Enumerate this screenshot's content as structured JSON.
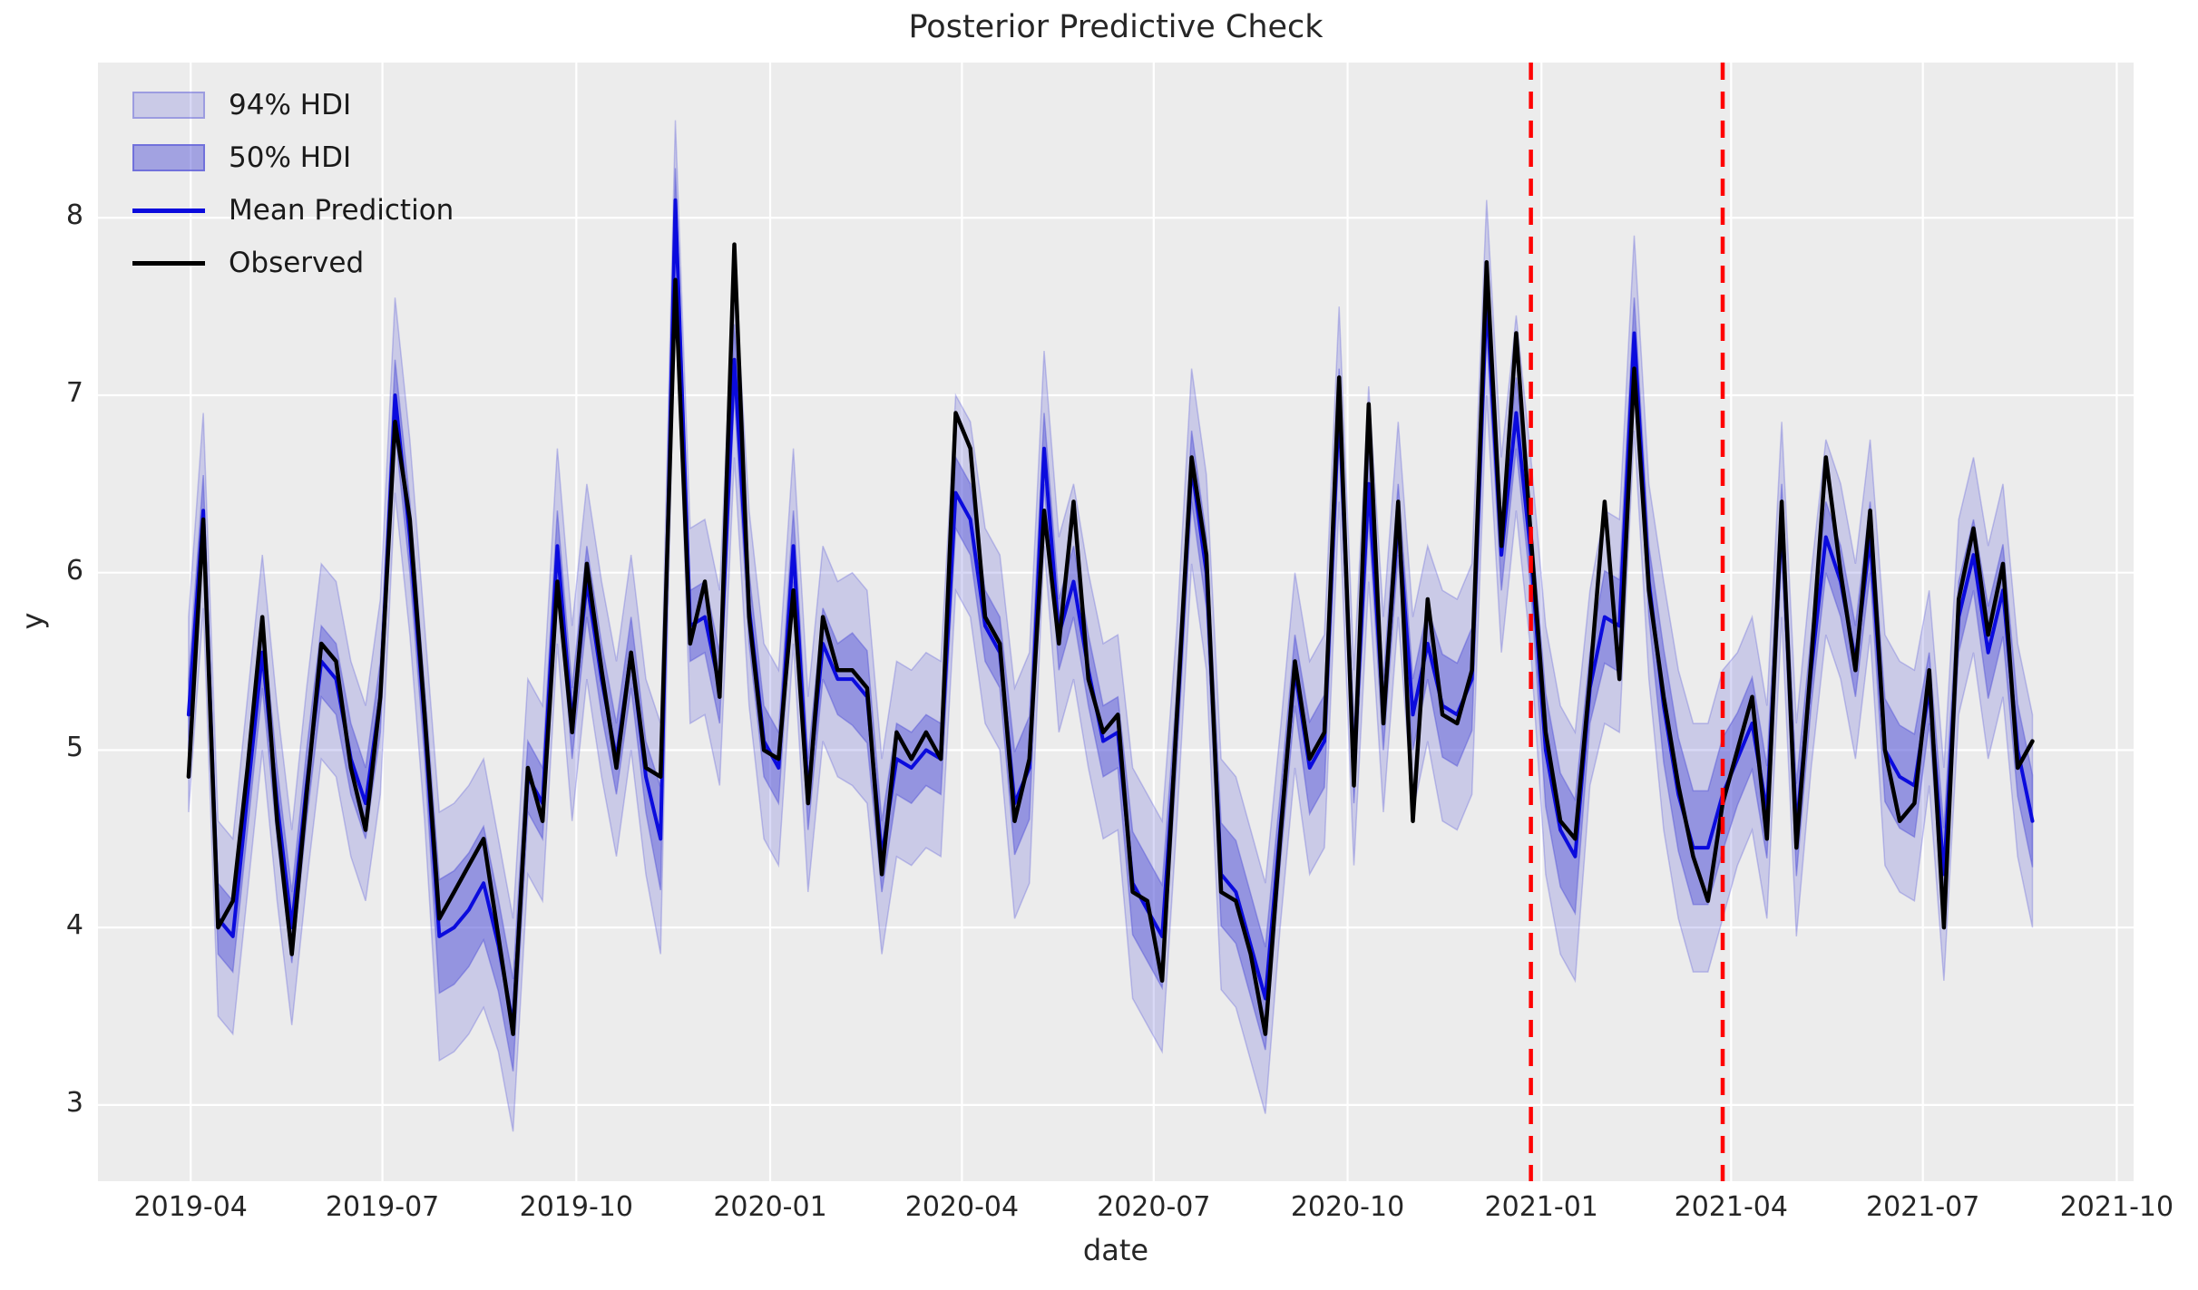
{
  "title": "Posterior Predictive Check",
  "x_axis_title": "date",
  "y_axis_title": "y",
  "legend": {
    "items": [
      {
        "label": "94% HDI",
        "swatch": "patch-light",
        "icon": "hdi94-patch-icon"
      },
      {
        "label": "50% HDI",
        "swatch": "patch-dark",
        "icon": "hdi50-patch-icon"
      },
      {
        "label": "Mean Prediction",
        "swatch": "line-blue",
        "icon": "mean-line-icon"
      },
      {
        "label": "Observed",
        "swatch": "line-black",
        "icon": "observed-line-icon"
      }
    ]
  },
  "colors": {
    "axes_background": "#ececec",
    "grid": "#ffffff",
    "hdi94_band": "rgba(82,82,214,0.22)",
    "hdi94_edge": "rgba(82,82,214,0.30)",
    "hdi50_band": "rgba(82,82,214,0.45)",
    "hdi50_edge": "rgba(82,82,214,0.45)",
    "mean_line": "#0b0bdd",
    "observed_line": "#000000",
    "cutoff_line": "#ff0000",
    "text": "#262626"
  },
  "chart_data": {
    "type": "line",
    "title": "Posterior Predictive Check",
    "xlabel": "date",
    "ylabel": "y",
    "frequency": "weekly",
    "start_date": "2019-03-31",
    "xlim": [
      "2019-02-16",
      "2021-10-09"
    ],
    "ylim": [
      2.57,
      8.875
    ],
    "y_ticks": [
      3,
      4,
      5,
      6,
      7,
      8
    ],
    "x_ticks": [
      {
        "label": "2019-04",
        "date": "2019-04-01"
      },
      {
        "label": "2019-07",
        "date": "2019-07-01"
      },
      {
        "label": "2019-10",
        "date": "2019-10-01"
      },
      {
        "label": "2020-01",
        "date": "2020-01-01"
      },
      {
        "label": "2020-04",
        "date": "2020-04-01"
      },
      {
        "label": "2020-07",
        "date": "2020-07-01"
      },
      {
        "label": "2020-10",
        "date": "2020-10-01"
      },
      {
        "label": "2021-01",
        "date": "2021-01-01"
      },
      {
        "label": "2021-04",
        "date": "2021-04-01"
      },
      {
        "label": "2021-07",
        "date": "2021-07-01"
      },
      {
        "label": "2021-10",
        "date": "2021-10-01"
      }
    ],
    "vlines": [
      {
        "date": "2020-12-27",
        "style": "dashed",
        "color": "#ff0000"
      },
      {
        "date": "2021-03-28",
        "style": "dashed",
        "color": "#ff0000"
      }
    ],
    "grid": true,
    "legend_position": "upper left",
    "series": [
      {
        "name": "Observed",
        "values": [
          4.85,
          6.3,
          4.0,
          4.15,
          4.9,
          5.75,
          4.6,
          3.85,
          4.75,
          5.6,
          5.5,
          4.9,
          4.55,
          5.3,
          6.85,
          6.3,
          5.2,
          4.05,
          4.2,
          4.35,
          4.5,
          3.95,
          3.4,
          4.9,
          4.6,
          5.95,
          5.1,
          6.05,
          5.45,
          4.9,
          5.55,
          4.9,
          4.85,
          7.65,
          5.6,
          5.95,
          5.3,
          7.85,
          5.75,
          5.0,
          4.95,
          5.9,
          4.7,
          5.75,
          5.45,
          5.45,
          5.35,
          4.3,
          5.1,
          4.95,
          5.1,
          4.95,
          6.9,
          6.7,
          5.75,
          5.6,
          4.6,
          4.95,
          6.35,
          5.6,
          6.4,
          5.4,
          5.1,
          5.2,
          4.2,
          4.15,
          3.7,
          5.2,
          6.65,
          6.1,
          4.2,
          4.15,
          3.85,
          3.4,
          4.5,
          5.5,
          4.95,
          5.1,
          7.1,
          4.8,
          6.95,
          5.15,
          6.4,
          4.6,
          5.85,
          5.2,
          5.15,
          5.45,
          7.75,
          6.15,
          7.35,
          6.2,
          5.1,
          4.6,
          4.5,
          5.4,
          6.4,
          5.4,
          7.15,
          5.9,
          5.3,
          4.8,
          4.4,
          4.15,
          4.7,
          5.0,
          5.3,
          4.5,
          6.4,
          4.45,
          5.5,
          6.65,
          6.0,
          5.45,
          6.35,
          5.0,
          4.6,
          4.7,
          5.45,
          4.0,
          5.85,
          6.25,
          5.65,
          6.05,
          4.9,
          5.05
        ]
      },
      {
        "name": "Mean Prediction",
        "values": [
          5.2,
          6.35,
          4.05,
          3.95,
          4.75,
          5.55,
          4.7,
          4.0,
          4.8,
          5.5,
          5.4,
          4.95,
          4.7,
          5.3,
          7.0,
          6.2,
          5.15,
          3.95,
          4.0,
          4.1,
          4.25,
          3.9,
          3.45,
          4.85,
          4.7,
          6.15,
          5.15,
          5.95,
          5.4,
          4.95,
          5.55,
          4.85,
          4.5,
          8.1,
          5.7,
          5.75,
          5.35,
          7.2,
          5.8,
          5.05,
          4.9,
          6.15,
          4.75,
          5.6,
          5.4,
          5.4,
          5.3,
          4.4,
          4.95,
          4.9,
          5.0,
          4.95,
          6.45,
          6.3,
          5.7,
          5.55,
          4.7,
          4.9,
          6.7,
          5.65,
          5.95,
          5.45,
          5.05,
          5.1,
          4.25,
          4.1,
          3.95,
          5.15,
          6.6,
          6.0,
          4.3,
          4.2,
          3.9,
          3.6,
          4.55,
          5.45,
          4.9,
          5.05,
          6.95,
          4.9,
          6.5,
          5.2,
          6.3,
          5.2,
          5.6,
          5.25,
          5.2,
          5.4,
          7.55,
          6.1,
          6.9,
          6.1,
          5.0,
          4.55,
          4.4,
          5.35,
          5.75,
          5.7,
          7.35,
          5.95,
          5.25,
          4.75,
          4.45,
          4.45,
          4.75,
          4.95,
          5.15,
          4.65,
          6.3,
          4.55,
          5.45,
          6.2,
          5.95,
          5.5,
          6.2,
          5.0,
          4.85,
          4.8,
          5.35,
          4.3,
          5.75,
          6.1,
          5.55,
          5.9,
          5.0,
          4.6
        ]
      },
      {
        "name": "94% HDI half-width",
        "values": [
          0.55,
          0.55,
          0.55,
          0.55,
          0.55,
          0.55,
          0.55,
          0.55,
          0.55,
          0.55,
          0.55,
          0.55,
          0.55,
          0.55,
          0.55,
          0.55,
          0.55,
          0.7,
          0.7,
          0.7,
          0.7,
          0.6,
          0.6,
          0.55,
          0.55,
          0.55,
          0.55,
          0.55,
          0.55,
          0.55,
          0.55,
          0.55,
          0.65,
          0.45,
          0.55,
          0.55,
          0.55,
          0.55,
          0.55,
          0.55,
          0.55,
          0.55,
          0.55,
          0.55,
          0.55,
          0.6,
          0.6,
          0.55,
          0.55,
          0.55,
          0.55,
          0.55,
          0.55,
          0.55,
          0.55,
          0.55,
          0.65,
          0.65,
          0.55,
          0.55,
          0.55,
          0.55,
          0.55,
          0.55,
          0.65,
          0.65,
          0.65,
          0.55,
          0.55,
          0.55,
          0.65,
          0.65,
          0.65,
          0.65,
          0.55,
          0.55,
          0.6,
          0.6,
          0.55,
          0.55,
          0.55,
          0.55,
          0.55,
          0.55,
          0.55,
          0.65,
          0.65,
          0.65,
          0.55,
          0.55,
          0.55,
          0.55,
          0.7,
          0.7,
          0.7,
          0.55,
          0.6,
          0.6,
          0.55,
          0.55,
          0.7,
          0.7,
          0.7,
          0.7,
          0.7,
          0.6,
          0.6,
          0.6,
          0.55,
          0.6,
          0.55,
          0.55,
          0.55,
          0.55,
          0.55,
          0.65,
          0.65,
          0.65,
          0.55,
          0.6,
          0.55,
          0.55,
          0.6,
          0.6,
          0.6,
          0.6
        ]
      },
      {
        "name": "50% HDI half-width",
        "values": [
          0.2,
          0.2,
          0.2,
          0.2,
          0.2,
          0.2,
          0.2,
          0.2,
          0.2,
          0.2,
          0.2,
          0.2,
          0.2,
          0.2,
          0.2,
          0.2,
          0.2,
          0.32,
          0.32,
          0.32,
          0.32,
          0.26,
          0.26,
          0.2,
          0.2,
          0.2,
          0.2,
          0.2,
          0.2,
          0.2,
          0.2,
          0.2,
          0.29,
          0.18,
          0.2,
          0.2,
          0.2,
          0.2,
          0.2,
          0.2,
          0.2,
          0.2,
          0.2,
          0.2,
          0.2,
          0.26,
          0.26,
          0.2,
          0.2,
          0.2,
          0.2,
          0.2,
          0.2,
          0.2,
          0.2,
          0.2,
          0.29,
          0.29,
          0.2,
          0.2,
          0.2,
          0.2,
          0.2,
          0.2,
          0.29,
          0.29,
          0.29,
          0.2,
          0.2,
          0.2,
          0.29,
          0.29,
          0.29,
          0.29,
          0.2,
          0.2,
          0.26,
          0.26,
          0.2,
          0.2,
          0.2,
          0.2,
          0.2,
          0.2,
          0.2,
          0.29,
          0.29,
          0.29,
          0.2,
          0.2,
          0.2,
          0.2,
          0.32,
          0.32,
          0.32,
          0.2,
          0.26,
          0.26,
          0.2,
          0.2,
          0.32,
          0.32,
          0.32,
          0.32,
          0.32,
          0.26,
          0.26,
          0.26,
          0.2,
          0.26,
          0.2,
          0.2,
          0.2,
          0.2,
          0.2,
          0.29,
          0.29,
          0.29,
          0.2,
          0.26,
          0.2,
          0.2,
          0.26,
          0.26,
          0.26,
          0.26
        ]
      }
    ]
  }
}
